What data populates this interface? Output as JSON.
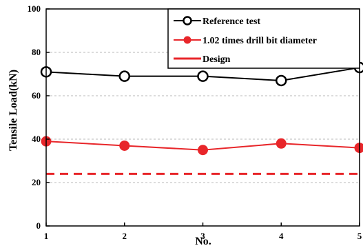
{
  "chart_data": {
    "type": "line",
    "x": [
      1,
      2,
      3,
      4,
      5
    ],
    "xlabel": "No.",
    "ylabel": "Tensile Load(kN)",
    "xlim": [
      1,
      5
    ],
    "ylim": [
      0,
      100
    ],
    "xticks": [
      "1",
      "2",
      "3",
      "4",
      "5"
    ],
    "yticks": [
      "0",
      "20",
      "40",
      "60",
      "80",
      "100"
    ],
    "grid": "horizontal dashed",
    "legend_position": "top-right",
    "series": [
      {
        "name": "Reference test",
        "values": [
          71,
          69,
          69,
          67,
          73
        ],
        "color": "#000000",
        "marker": "open-circle",
        "style": "solid"
      },
      {
        "name": "1.02 times drill bit diameter",
        "values": [
          39,
          37,
          35,
          38,
          36
        ],
        "color": "#e8262a",
        "marker": "filled-circle",
        "style": "solid"
      },
      {
        "name": "Design",
        "values": [
          24,
          24,
          24,
          24,
          24
        ],
        "color": "#e8262a",
        "marker": "none",
        "style": "dashed"
      }
    ]
  }
}
